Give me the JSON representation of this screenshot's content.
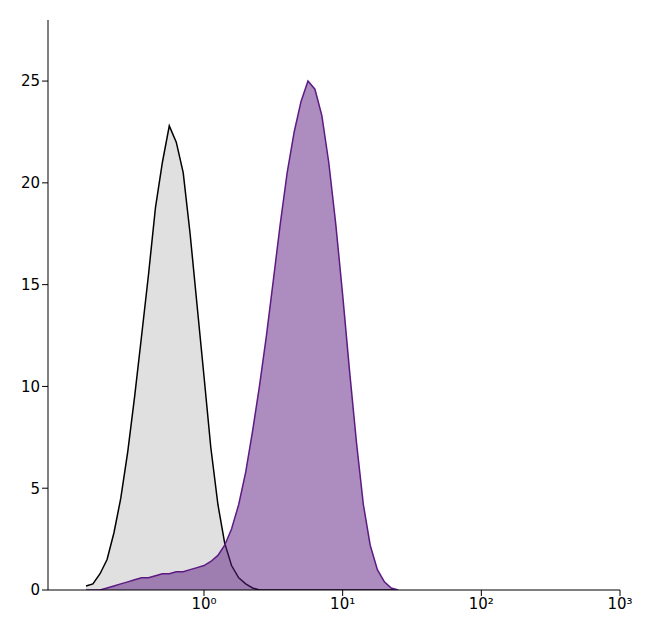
{
  "chart_data": {
    "type": "area",
    "log": "x",
    "xlim": [
      0.075,
      1000
    ],
    "ylim": [
      0,
      28
    ],
    "xticks": [
      {
        "value": 1,
        "label": "10⁰"
      },
      {
        "value": 10,
        "label": "10¹"
      },
      {
        "value": 100,
        "label": "10²"
      },
      {
        "value": 1000,
        "label": "10³"
      }
    ],
    "yticks": [
      0,
      5,
      10,
      15,
      20,
      25
    ],
    "x": [
      0.141,
      0.158,
      0.178,
      0.2,
      0.224,
      0.251,
      0.282,
      0.316,
      0.355,
      0.398,
      0.447,
      0.501,
      0.562,
      0.631,
      0.708,
      0.794,
      0.891,
      1,
      1.12,
      1.26,
      1.41,
      1.58,
      1.78,
      2,
      2.24,
      2.51,
      2.82,
      3.16,
      3.55,
      3.98,
      4.47,
      5.01,
      5.62,
      6.31,
      7.08,
      7.94,
      8.91,
      10,
      11.2,
      12.6,
      14.1,
      15.8,
      17.8,
      20,
      22.4,
      25.1
    ],
    "series": [
      {
        "color": "#000000",
        "values": [
          0.2,
          0.3,
          0.8,
          1.5,
          2.8,
          4.5,
          6.8,
          9.5,
          12.5,
          15.5,
          18.8,
          21.0,
          22.8,
          22.0,
          20.5,
          17.5,
          14.0,
          10.5,
          7.0,
          4.2,
          2.3,
          1.2,
          0.6,
          0.3,
          0.1,
          0,
          0,
          0,
          0,
          0,
          0,
          0,
          0,
          0,
          0,
          0,
          0,
          0,
          0,
          0,
          0,
          0,
          0,
          0,
          0,
          0
        ]
      },
      {
        "color": "#5c1a82",
        "values": [
          0,
          0,
          0,
          0.1,
          0.2,
          0.3,
          0.4,
          0.5,
          0.6,
          0.6,
          0.7,
          0.8,
          0.8,
          0.9,
          0.9,
          1.0,
          1.1,
          1.2,
          1.4,
          1.7,
          2.2,
          3.0,
          4.2,
          5.8,
          7.8,
          10.0,
          12.5,
          15.2,
          18.0,
          20.5,
          22.5,
          24.0,
          25.0,
          24.6,
          23.3,
          21.0,
          18.0,
          14.5,
          10.8,
          7.2,
          4.2,
          2.2,
          1.0,
          0.4,
          0.1,
          0
        ]
      }
    ]
  }
}
